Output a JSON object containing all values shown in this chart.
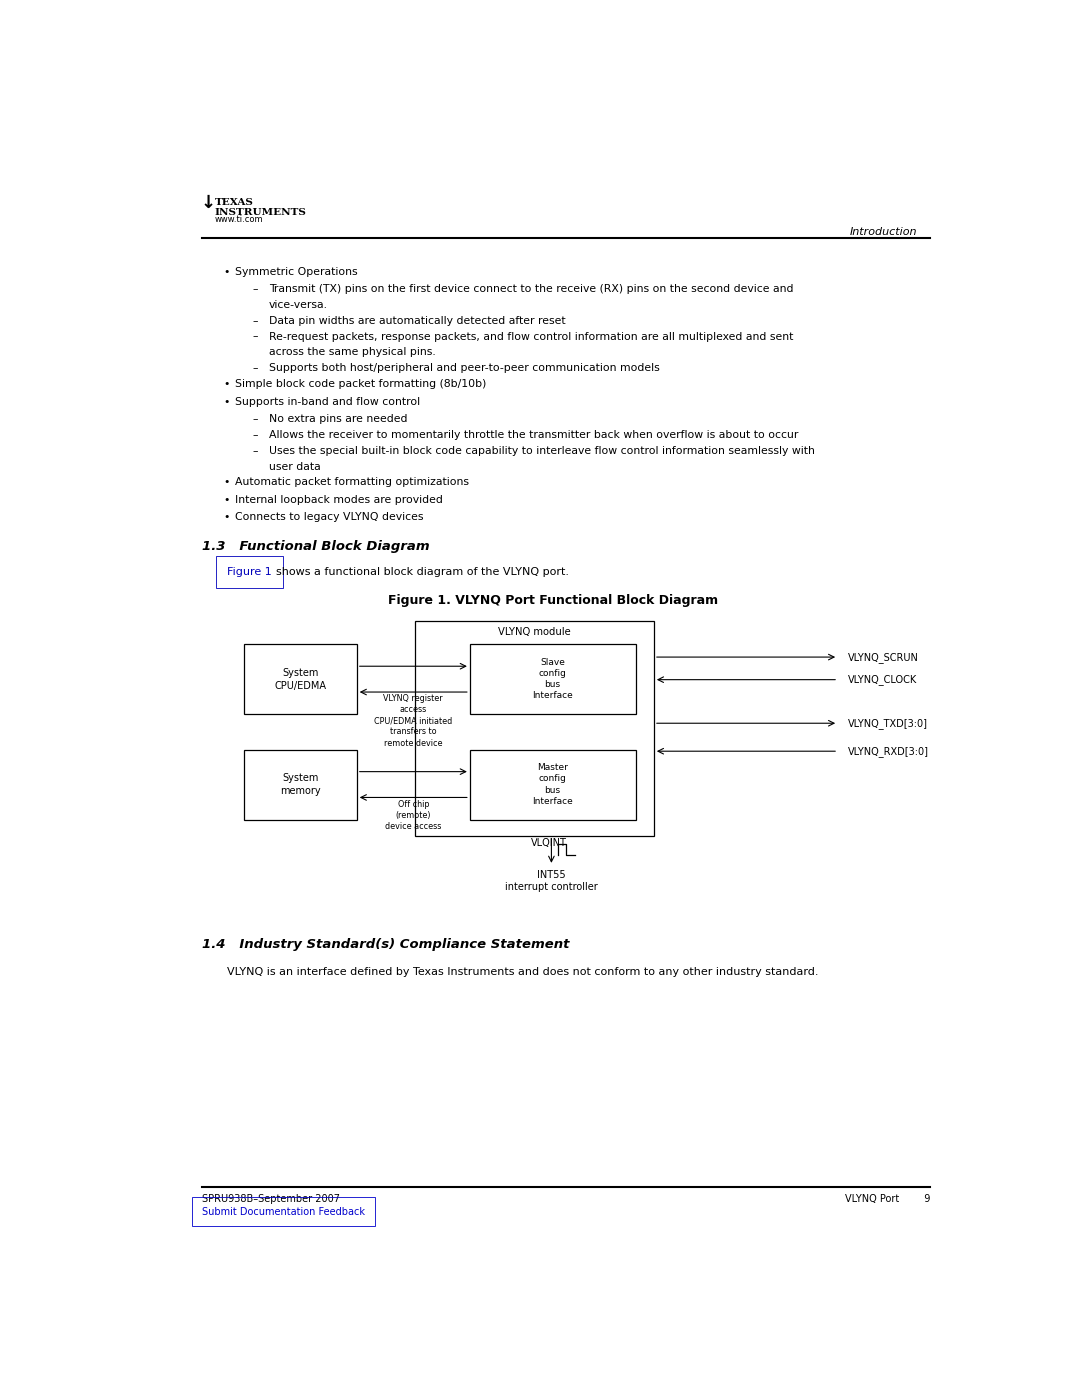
{
  "bg_color": "#ffffff",
  "text_color": "#000000",
  "page_width": 10.8,
  "page_height": 13.97,
  "bullet_items": [
    {
      "level": 1,
      "text": "Symmetric Operations"
    },
    {
      "level": 2,
      "text": "Transmit (TX) pins on the first device connect to the receive (RX) pins on the second device and\nvice-versa."
    },
    {
      "level": 2,
      "text": "Data pin widths are automatically detected after reset"
    },
    {
      "level": 2,
      "text": "Re-request packets, response packets, and flow control information are all multiplexed and sent\nacross the same physical pins."
    },
    {
      "level": 2,
      "text": "Supports both host/peripheral and peer-to-peer communication models"
    },
    {
      "level": 1,
      "text": "Simple block code packet formatting (8b/10b)"
    },
    {
      "level": 1,
      "text": "Supports in-band and flow control"
    },
    {
      "level": 2,
      "text": "No extra pins are needed"
    },
    {
      "level": 2,
      "text": "Allows the receiver to momentarily throttle the transmitter back when overflow is about to occur"
    },
    {
      "level": 2,
      "text": "Uses the special built-in block code capability to interleave flow control information seamlessly with\nuser data"
    },
    {
      "level": 1,
      "text": "Automatic packet formatting optimizations"
    },
    {
      "level": 1,
      "text": "Internal loopback modes are provided"
    },
    {
      "level": 1,
      "text": "Connects to legacy VLYNQ devices"
    }
  ],
  "section_13_title": "1.3   Functional Block Diagram",
  "figure_title": "Figure 1. VLYNQ Port Functional Block Diagram",
  "section_14_title": "1.4   Industry Standard(s) Compliance Statement",
  "section_14_text": "VLYNQ is an interface defined by Texas Instruments and does not conform to any other industry standard.",
  "footer_left": "SPRU938B–September 2007",
  "footer_right": "VLYNQ Port        9",
  "footer_link": "Submit Documentation Feedback"
}
